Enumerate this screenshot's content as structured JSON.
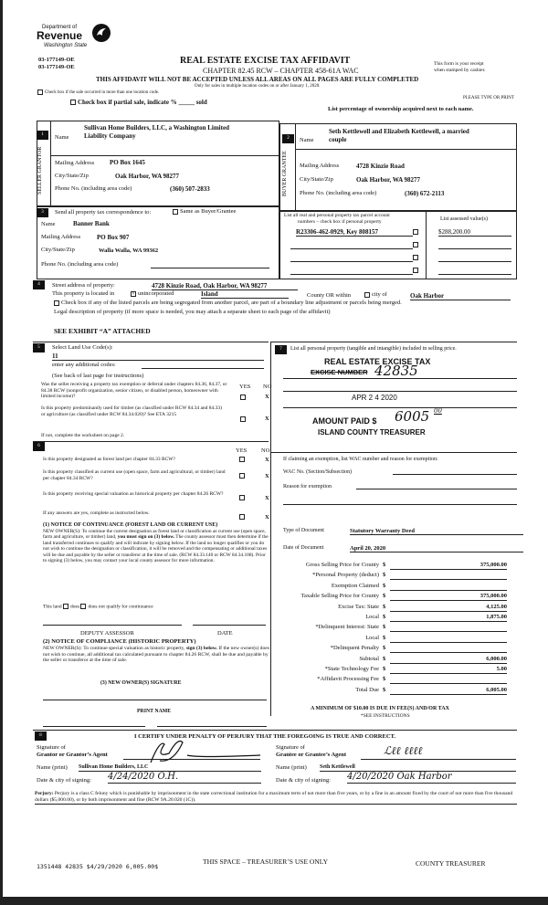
{
  "header": {
    "dept_line1": "Department of",
    "dept_line2": "Revenue",
    "dept_line3": "Washington State",
    "form_ids": [
      "03-177149-OE",
      "03-177149-OE"
    ],
    "title": "REAL ESTATE EXCISE TAX AFFIDAVIT",
    "chapter": "CHAPTER 82.45 RCW – CHAPTER 458-61A WAC",
    "warning": "THIS AFFIDAVIT WILL NOT BE ACCEPTED UNLESS ALL AREAS ON ALL PAGES ARE FULLY COMPLETED",
    "multi_note": "Only for sales in multiple location codes on or after January 1, 2020.",
    "receipt": [
      "This form is your receipt",
      "when stamped by cashier."
    ],
    "multi_checkbox": "Check box if the sale occurred in more than one location code.",
    "partial_checkbox": "Check box if partial sale, indicate % _____ sold",
    "please_print": "PLEASE TYPE OR PRINT",
    "ownership_note": "List percentage of ownership acquired next to each name."
  },
  "seller": {
    "num": "1",
    "side_label": "SELLER GRANTOR",
    "name_label": "Name",
    "name": [
      "Sullivan Home Builders, LLC, a Washington Limited",
      "Liability Company"
    ],
    "mail_label": "Mailing Address",
    "mail": "PO Box 1645",
    "city_label": "City/State/Zip",
    "city": "Oak Harbor, WA 98277",
    "phone_label": "Phone No. (including area code)",
    "phone": "(360) 507-2833"
  },
  "buyer": {
    "num": "2",
    "side_label": "BUYER GRANTEE",
    "name_label": "Name",
    "name": [
      "Seth Kettlewell and Elizabeth Kettlewell, a married",
      "couple"
    ],
    "mail_label": "Mailing Address",
    "mail": "4728 Kinzie Road",
    "city_label": "City/State/Zip",
    "city": "Oak Harbor, WA 98277",
    "phone_label": "Phone No. (including area code)",
    "phone": "(360) 672-2113"
  },
  "tax_corr": {
    "num": "3",
    "label": "Send all property tax correspondence to:",
    "same_label": "Same as Buyer/Grantee",
    "name_label": "Name",
    "name": "Banner Bank",
    "mail_label": "Mailing Address",
    "mail": "PO Box 907",
    "city_label": "City/State/Zip",
    "city": "Walla Walla, WA 99362",
    "phone_label": "Phone No. (including area code)",
    "phone": ""
  },
  "parcels": {
    "header": [
      "List all real and personal property tax parcel account",
      "numbers – check box if personal property"
    ],
    "assessed_header": "List assessed value(s)",
    "items": [
      {
        "number": "R23306-462-0929, Key 808157",
        "value": "$288,200.00"
      },
      {
        "number": "",
        "value": ""
      },
      {
        "number": "",
        "value": ""
      },
      {
        "number": "",
        "value": ""
      }
    ]
  },
  "property": {
    "num": "4",
    "street_label": "Street address of property:",
    "street": "4728 Kinzie Road, Oak Harbor, WA  98277",
    "located_label": "This property is located in",
    "unincorporated_label": "unincorporated",
    "county": "Island",
    "county_label": "County OR  within",
    "city_label": "city of",
    "city": "Oak Harbor",
    "segregated": "Check box if any of the listed parcels are being segregated from another parcel, are part of a boundary line adjustment or parcels being merged.",
    "legal_label": "Legal description of property (if more space is needed, you may attach a separate sheet to each page of the affidavit)",
    "legal": "SEE EXHIBIT “A” ATTACHED"
  },
  "section5": {
    "num": "5",
    "label": "Select Land Use Code(s):",
    "code": "11",
    "additional": "enter any additional codes:",
    "instructions": "(See back of last page for instructions)",
    "yes": "YES",
    "no": "NO",
    "questions": [
      {
        "text": "Was the seller receiving a property tax exemption or deferral under chapters 84.36, 84.37, or 84.38 RCW (nonprofit organization, senior citizen, or disabled person, homeowner with limited income)?",
        "answer": "X"
      },
      {
        "text": "Is this property predominantly used for timber (as classified under RCW 84.34 and 84.33) or agriculture (as classified under RCW 84.34.020)? See ETA 3215",
        "answer": "X"
      }
    ],
    "worksheet": "If not, complete the worksheet on page 2."
  },
  "section6": {
    "num": "6",
    "yes": "YES",
    "no": "NO",
    "questions": [
      {
        "text": "Is this property designated as forest land per chapter 84.33 RCW?",
        "answer": "X"
      },
      {
        "text": "Is this property classified as current use (open space, farm and agricultural, or timber) land per chapter 84.34 RCW?",
        "answer": "X"
      },
      {
        "text": "Is this property receiving special valuation as historical property per chapter 84.26 RCW?",
        "answer": "X"
      },
      {
        "text": "If any answers are yes, complete as instructed below.",
        "answer": "X"
      }
    ],
    "notice1_title": "(1) NOTICE OF CONTINUANCE (FOREST LAND OR CURRENT USE)",
    "notice1_a": "NEW OWNER(S): To continue the current designation as forest land or classification as current use (open space, farm and agriculture, or timber) land, ",
    "notice1_bold": "you must sign on (3) below.",
    "notice1_b": " The county assessor must then determine if the land transferred continues to qualify and will indicate by signing below.  If the land no longer qualifies or you do not wish to continue the designation or classification, it will be removed and the compensating or additional taxes will be due and payable by the seller or transferor at the time of sale.  (RCW 84.33.140 or RCW 84.34.108). Prior to signing (3) below, you may contact your local county assessor for more information.",
    "qualify_a": "This land",
    "qualify_b": "does",
    "qualify_c": "does not qualify for continuance",
    "deputy": "DEPUTY ASSESSOR",
    "date": "DATE",
    "notice2_title": "(2) NOTICE OF COMPLIANCE (HISTORIC PROPERTY)",
    "notice2_a": "NEW OWNER(S):  To continue special valuation as historic property, ",
    "notice2_bold": "sign (3) below.",
    "notice2_b": "  If the new owner(s) does not wish to continue, all additional tax calculated pursuant to chapter 84.26 RCW, shall be due and payable by the seller or transferor at the time of sale.",
    "signature_title": "(3) NEW OWNER(S) SIGNATURE",
    "print_name": "PRINT NAME"
  },
  "section7": {
    "num": "7",
    "label": "List all personal property (tangible and intangible) included in selling price.",
    "stamp_line1": "REAL ESTATE EXCISE TAX",
    "stamp_line2": "EXCISE NUMBER",
    "excise_number": "42835",
    "stamp_date": "APR 2 4 2020",
    "amount_label": "AMOUNT PAID $",
    "amount": "6005",
    "amount_cents": "00",
    "treasurer": "ISLAND COUNTY TREASURER",
    "exemption_label": "If claiming an exemption, list WAC number and reason for exemption:",
    "wac_label": "WAC No. (Section/Subsection)",
    "reason_label": "Reason for exemption",
    "doc_type_label": "Type of Document",
    "doc_type": "Statutory Warranty Deed",
    "doc_date_label": "Date of Document",
    "doc_date": "April 20, 2020",
    "prices": [
      {
        "label": "Gross Selling Price for County",
        "value": "375,000.00"
      },
      {
        "label": "*Personal Property (deduct)",
        "value": ""
      },
      {
        "label": "Exemption Claimed",
        "value": ""
      },
      {
        "label": "Taxable Selling Price for County",
        "value": "375,000.00"
      },
      {
        "label": "Excise Tax:  State",
        "value": "4,125.00"
      },
      {
        "label": "Local",
        "value": "1,875.00"
      },
      {
        "label": "*Delinquent Interest:  State",
        "value": ""
      },
      {
        "label": "Local",
        "value": ""
      },
      {
        "label": "*Delinquent Penalty",
        "value": ""
      },
      {
        "label": "Subtotal",
        "value": "6,000.00"
      },
      {
        "label": "*State Technology Fee",
        "value": "5.00"
      },
      {
        "label": "*Affidavit Processing Fee",
        "value": ""
      },
      {
        "label": "Total Due",
        "value": "6,005.00"
      }
    ],
    "currency": "$",
    "minimum": "A MINIMUM OF $10.00 IS DUE IN FEE(S) AND/OR TAX",
    "see_instructions": "*SEE INSTRUCTIONS"
  },
  "section8": {
    "num": "8",
    "certify": "I CERTIFY UNDER PENALTY OF PERJURY THAT THE FOREGOING IS TRUE AND CORRECT.",
    "sig_grantor_label": [
      "Signature of",
      "Grantor or Grantor’s Agent"
    ],
    "sig_grantee_label": [
      "Signature of",
      "Grantee or Grantee’s Agent"
    ],
    "name_label": "Name (print)",
    "grantor_name": "Sullivan Home Builders, LLC",
    "grantee_name": "Seth  Kettlewell",
    "date_label": "Date & city of signing:",
    "grantor_date": "4/24/2020  O.H.",
    "grantee_date": "4/20/2020  Oak Harbor"
  },
  "perjury": {
    "label": "Perjury:",
    "text": " Perjury is a class C felony which is punishable by imprisonment in the state correctional institution for a maximum term of not more than five years, or by a fine in an amount fixed by the court of not more than five thousand dollars ($5,000.00), or by both imprisonment and fine (RCW 9A.20.020 (1C))."
  },
  "footer": {
    "receipt_line": "1351448 42835 $4/29/2020 6,005.00$",
    "treasurer_use": "THIS SPACE – TREASURER’S USE ONLY",
    "county_treasurer": "COUNTY TREASURER"
  }
}
